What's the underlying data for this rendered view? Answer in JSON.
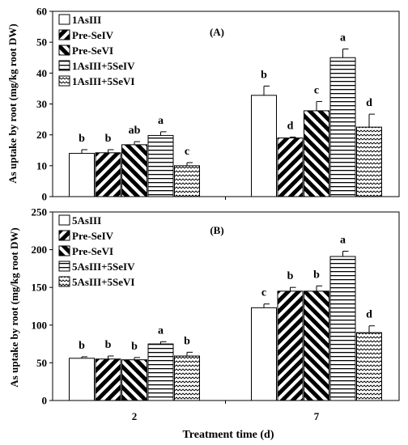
{
  "chart_data": [
    {
      "type": "bar",
      "panel_label": "(A)",
      "ylabel": "As uptake by root (mg/kg root DW)",
      "xlabel": "",
      "categories": [
        "2",
        "7"
      ],
      "ylim": [
        0,
        60
      ],
      "yticks": [
        "0",
        "10",
        "20",
        "30",
        "40",
        "50",
        "60"
      ],
      "grid": false,
      "legend_position": "top-left",
      "series": [
        {
          "name": "1AsIII",
          "pattern": "white",
          "values": [
            14.0,
            32.8
          ],
          "errors": [
            1.2,
            3.0
          ],
          "letters": [
            "b",
            "b"
          ]
        },
        {
          "name": "Pre-SeIV",
          "pattern": "bdiag",
          "values": [
            14.2,
            19.0
          ],
          "errors": [
            1.0,
            0.3
          ],
          "letters": [
            "b",
            "d"
          ]
        },
        {
          "name": "Pre-SeVI",
          "pattern": "fdiag",
          "values": [
            16.8,
            27.8
          ],
          "errors": [
            1.0,
            3.0
          ],
          "letters": [
            "ab",
            "c"
          ]
        },
        {
          "name": "1AsIII+5SeIV",
          "pattern": "hlines",
          "values": [
            19.8,
            45.0
          ],
          "errors": [
            1.2,
            2.8
          ],
          "letters": [
            "a",
            "a"
          ]
        },
        {
          "name": "1AsIII+5SeVI",
          "pattern": "wave",
          "values": [
            10.0,
            22.5
          ],
          "errors": [
            1.0,
            4.2
          ],
          "letters": [
            "c",
            "d"
          ]
        }
      ]
    },
    {
      "type": "bar",
      "panel_label": "(B)",
      "ylabel": "As uptake by root (mg/kg root DW)",
      "xlabel": "Treatment time (d)",
      "categories": [
        "2",
        "7"
      ],
      "ylim": [
        0,
        250
      ],
      "yticks": [
        "0",
        "50",
        "100",
        "150",
        "200",
        "250"
      ],
      "grid": false,
      "legend_position": "top-left",
      "series": [
        {
          "name": "5AsIII",
          "pattern": "white",
          "values": [
            56,
            123
          ],
          "errors": [
            2,
            5
          ],
          "letters": [
            "b",
            "c"
          ]
        },
        {
          "name": "Pre-SeIV",
          "pattern": "bdiag",
          "values": [
            55,
            145
          ],
          "errors": [
            4,
            5
          ],
          "letters": [
            "b",
            "b"
          ]
        },
        {
          "name": "Pre-SeVI",
          "pattern": "fdiag",
          "values": [
            54,
            145
          ],
          "errors": [
            3,
            7
          ],
          "letters": [
            "b",
            "b"
          ]
        },
        {
          "name": "5AsIII+5SeIV",
          "pattern": "hlines",
          "values": [
            75,
            191
          ],
          "errors": [
            3,
            7
          ],
          "letters": [
            "a",
            "a"
          ]
        },
        {
          "name": "5AsIII+5SeVI",
          "pattern": "wave",
          "values": [
            59,
            90
          ],
          "errors": [
            5,
            9
          ],
          "letters": [
            "b",
            "d"
          ]
        }
      ]
    }
  ]
}
